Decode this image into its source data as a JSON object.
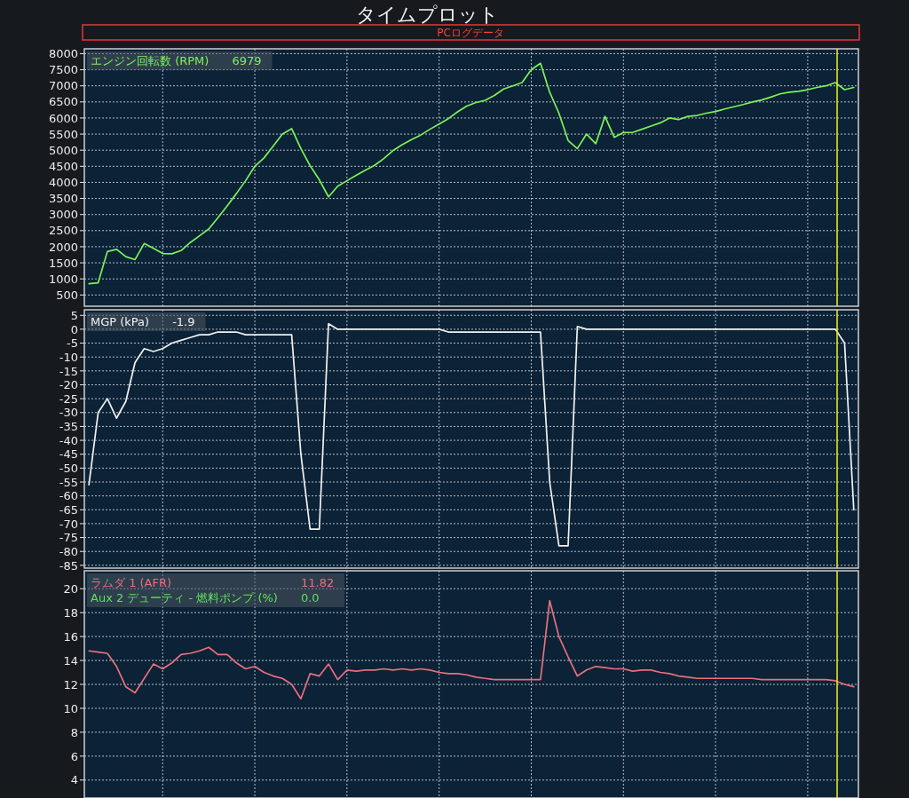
{
  "chart_data": [
    {
      "type": "line",
      "title": "タイムプロット",
      "subtitle": "PCログデータ",
      "categories": [
        null,
        null,
        null,
        null,
        null,
        null,
        null,
        null,
        null,
        null,
        null,
        null,
        null,
        null,
        null,
        null,
        null,
        null,
        null,
        null,
        null,
        null,
        null,
        null,
        null,
        null,
        null,
        null,
        null,
        null,
        null,
        null,
        null,
        null,
        null,
        null,
        null,
        null,
        null,
        null,
        null,
        null,
        null,
        null,
        null,
        null,
        null,
        null,
        null,
        null,
        null,
        null,
        null,
        null,
        null,
        null,
        null,
        null,
        null,
        null,
        null,
        null,
        null,
        null,
        null,
        null,
        null,
        null,
        null,
        null,
        null,
        null,
        null,
        null,
        null,
        null,
        null,
        null,
        null,
        null,
        null,
        null,
        null,
        null
      ],
      "series": [
        {
          "name": "エンジン回転数 (RPM)",
          "color": "#7cf25a",
          "values": [
            850,
            880,
            1850,
            1920,
            1690,
            1600,
            2100,
            1950,
            1790,
            1780,
            1880,
            2130,
            2340,
            2550,
            2900,
            3270,
            3650,
            4050,
            4500,
            4760,
            5130,
            5500,
            5670,
            5050,
            4520,
            4080,
            3550,
            3880,
            4050,
            4220,
            4380,
            4530,
            4740,
            4990,
            5170,
            5330,
            5470,
            5650,
            5810,
            5980,
            6190,
            6370,
            6480,
            6550,
            6700,
            6900,
            7000,
            7100,
            7500,
            7700,
            6800,
            6150,
            5300,
            5050,
            5500,
            5200,
            6050,
            5400,
            5550,
            5550,
            5650,
            5750,
            5850,
            6000,
            5950,
            6050,
            6080,
            6150,
            6200,
            6280,
            6350,
            6420,
            6500,
            6560,
            6650,
            6750,
            6800,
            6830,
            6880,
            6950,
            7000,
            7100,
            6880,
            6950
          ]
        }
      ],
      "annotations": [
        "6979"
      ],
      "ylim": [
        150,
        8150
      ],
      "yticks": [
        500,
        1000,
        1500,
        2000,
        2500,
        3000,
        3500,
        4000,
        4500,
        5000,
        5500,
        6000,
        6500,
        7000,
        7500,
        8000
      ],
      "grid": true,
      "legend": "top left",
      "tick_labels": "y"
    },
    {
      "type": "line",
      "categories": [
        null,
        null,
        null,
        null,
        null,
        null,
        null,
        null,
        null,
        null,
        null,
        null,
        null,
        null,
        null,
        null,
        null,
        null,
        null,
        null,
        null,
        null,
        null,
        null,
        null,
        null,
        null,
        null,
        null,
        null,
        null,
        null,
        null,
        null,
        null,
        null,
        null,
        null,
        null,
        null,
        null,
        null,
        null,
        null,
        null,
        null,
        null,
        null,
        null,
        null,
        null,
        null,
        null,
        null,
        null,
        null,
        null,
        null,
        null,
        null,
        null,
        null,
        null,
        null,
        null,
        null,
        null,
        null,
        null,
        null,
        null,
        null,
        null,
        null,
        null,
        null,
        null,
        null,
        null,
        null,
        null,
        null,
        null,
        null
      ],
      "series": [
        {
          "name": "MGP (kPa)",
          "color": "#f2f2f2",
          "values": [
            -56,
            -30,
            -25,
            -32,
            -26,
            -12,
            -7,
            -8,
            -7,
            -5,
            -4,
            -3,
            -2,
            -2,
            -1,
            -1,
            -1,
            -2,
            -2,
            -2,
            -2,
            -2,
            -2,
            -45,
            -72,
            -72,
            2,
            0,
            0,
            0,
            0,
            0,
            0,
            0,
            0,
            0,
            0,
            0,
            0,
            -1,
            -1,
            -1,
            -1,
            -1,
            -1,
            -1,
            -1,
            -1,
            -1,
            -1,
            -55,
            -78,
            -78,
            1,
            0,
            0,
            0,
            0,
            0,
            0,
            0,
            0,
            0,
            0,
            0,
            0,
            0,
            0,
            0,
            0,
            0,
            0,
            0,
            0,
            0,
            0,
            0,
            0,
            0,
            0,
            0,
            0,
            -5,
            -65
          ]
        }
      ],
      "annotations": [
        "-1.9"
      ],
      "ylim": [
        -86,
        7
      ],
      "yticks": [
        5,
        0,
        -5,
        -10,
        -15,
        -20,
        -25,
        -30,
        -35,
        -40,
        -45,
        -50,
        -55,
        -60,
        -65,
        -70,
        -75,
        -80,
        -85
      ],
      "grid": true,
      "legend": "top left",
      "tick_labels": "y"
    },
    {
      "type": "line",
      "categories": [
        null,
        null,
        null,
        null,
        null,
        null,
        null,
        null,
        null,
        null,
        null,
        null,
        null,
        null,
        null,
        null,
        null,
        null,
        null,
        null,
        null,
        null,
        null,
        null,
        null,
        null,
        null,
        null,
        null,
        null,
        null,
        null,
        null,
        null,
        null,
        null,
        null,
        null,
        null,
        null,
        null,
        null,
        null,
        null,
        null,
        null,
        null,
        null,
        null,
        null,
        null,
        null,
        null,
        null,
        null,
        null,
        null,
        null,
        null,
        null,
        null,
        null,
        null,
        null,
        null,
        null,
        null,
        null,
        null,
        null,
        null,
        null,
        null,
        null,
        null,
        null,
        null,
        null,
        null,
        null,
        null,
        null,
        null,
        null
      ],
      "series": [
        {
          "name": "ラムダ 1 (AFR)",
          "color": "#e8707e",
          "values": [
            14.8,
            14.7,
            14.6,
            13.5,
            11.8,
            11.3,
            12.5,
            13.7,
            13.3,
            13.8,
            14.5,
            14.6,
            14.8,
            15.1,
            14.5,
            14.5,
            13.8,
            13.3,
            13.5,
            13.0,
            12.7,
            12.5,
            12.0,
            10.8,
            12.9,
            12.7,
            13.7,
            12.4,
            13.2,
            13.1,
            13.2,
            13.2,
            13.3,
            13.2,
            13.3,
            13.2,
            13.3,
            13.2,
            13.0,
            12.9,
            12.9,
            12.8,
            12.6,
            12.5,
            12.4,
            12.4,
            12.4,
            12.4,
            12.4,
            12.4,
            19.0,
            16.0,
            14.3,
            12.7,
            13.2,
            13.5,
            13.4,
            13.3,
            13.3,
            13.1,
            13.2,
            13.2,
            13.0,
            12.9,
            12.7,
            12.6,
            12.5,
            12.5,
            12.5,
            12.5,
            12.5,
            12.5,
            12.5,
            12.4,
            12.4,
            12.4,
            12.4,
            12.4,
            12.4,
            12.4,
            12.4,
            12.3,
            12.0,
            11.8
          ]
        },
        {
          "name": "Aux 2 デューティ - 燃料ポンプ (%)",
          "color": "#5ee05a",
          "values": [
            null,
            null,
            null,
            null,
            null,
            null,
            null,
            null,
            null,
            null,
            null,
            null,
            null,
            null,
            null,
            null,
            null,
            null,
            null,
            null,
            null,
            null,
            null,
            null,
            null,
            null,
            null,
            null,
            null,
            null,
            null,
            null,
            null,
            null,
            null,
            null,
            null,
            null,
            null,
            null,
            null,
            null,
            null,
            null,
            null,
            null,
            null,
            null,
            null,
            null,
            null,
            null,
            null,
            null,
            null,
            null,
            null,
            null,
            null,
            null,
            null,
            null,
            null,
            null,
            null,
            null,
            null,
            null,
            null,
            null,
            null,
            null,
            null,
            null,
            null,
            null,
            null,
            null,
            null,
            null,
            null,
            null,
            null,
            null
          ]
        }
      ],
      "annotations": [
        "11.82",
        "0.0"
      ],
      "ylim": [
        2.5,
        21.5
      ],
      "yticks": [
        4,
        6,
        8,
        10,
        12,
        14,
        16,
        18,
        20
      ],
      "grid": true,
      "legend": "top left",
      "tick_labels": "y"
    }
  ]
}
